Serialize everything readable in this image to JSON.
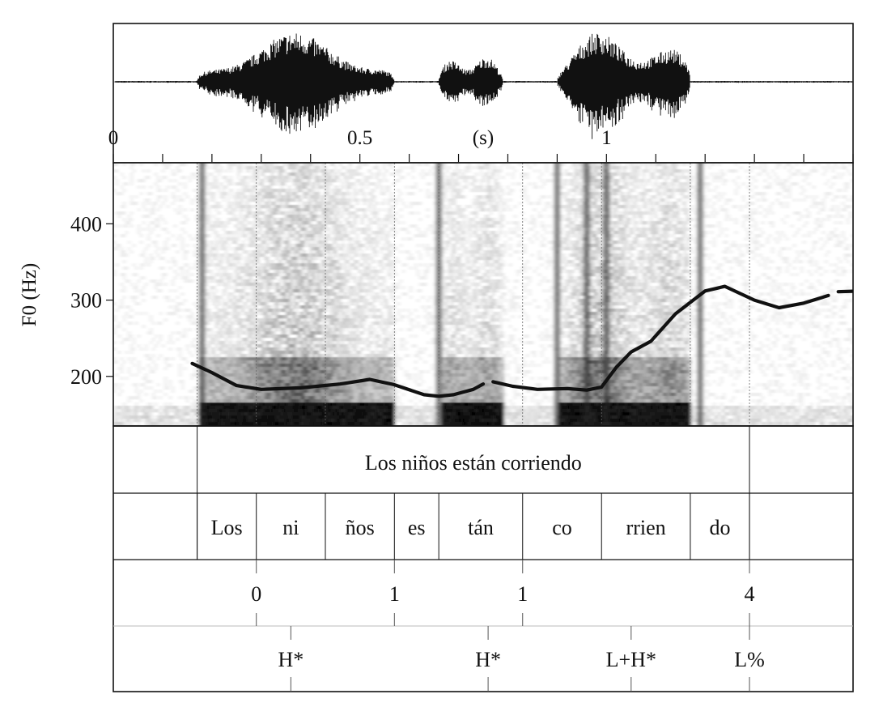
{
  "waveform": {
    "time_axis": {
      "unit_label": "(s)",
      "tick_labels": [
        {
          "text": "0",
          "time": 0
        },
        {
          "text": "0.5",
          "time": 0.5
        },
        {
          "text": "1",
          "time": 1.0
        }
      ],
      "xlim": [
        0,
        1.5
      ]
    },
    "bursts": [
      {
        "start": 0.17,
        "end": 0.57,
        "amp": 0.9
      },
      {
        "start": 0.66,
        "end": 0.79,
        "amp": 0.55
      },
      {
        "start": 0.9,
        "end": 1.17,
        "amp": 1.0
      }
    ]
  },
  "spectrogram": {
    "ylabel": "F0 (Hz)",
    "ylim": [
      135,
      480
    ],
    "yticks": [
      {
        "text": "200",
        "value": 200
      },
      {
        "text": "300",
        "value": 300
      },
      {
        "text": "400",
        "value": 400
      }
    ]
  },
  "chart_data": {
    "type": "line",
    "title": "",
    "xlabel": "(s)",
    "ylabel": "F0 (Hz)",
    "xlim": [
      0,
      1.5
    ],
    "ylim": [
      135,
      480
    ],
    "series": [
      {
        "segments": [
          [
            [
              0.16,
              217
            ],
            [
              0.2,
              205
            ],
            [
              0.25,
              188
            ],
            [
              0.3,
              183
            ],
            [
              0.38,
              185
            ],
            [
              0.46,
              190
            ],
            [
              0.52,
              196
            ],
            [
              0.57,
              189
            ],
            [
              0.63,
              176
            ],
            [
              0.66,
              174
            ],
            [
              0.69,
              176
            ],
            [
              0.73,
              183
            ],
            [
              0.75,
              190
            ]
          ],
          [
            [
              0.77,
              193
            ],
            [
              0.81,
              187
            ],
            [
              0.86,
              183
            ],
            [
              0.92,
              184
            ],
            [
              0.96,
              182
            ],
            [
              0.99,
              186
            ],
            [
              1.02,
              212
            ],
            [
              1.05,
              232
            ],
            [
              1.09,
              246
            ],
            [
              1.14,
              282
            ],
            [
              1.2,
              312
            ],
            [
              1.24,
              318
            ],
            [
              1.3,
              300
            ],
            [
              1.35,
              290
            ],
            [
              1.4,
              296
            ],
            [
              1.45,
              306
            ]
          ],
          [
            [
              1.47,
              311
            ],
            [
              1.52,
              312
            ]
          ]
        ]
      }
    ]
  },
  "tiers": {
    "utterance": {
      "text": "Los niños están corriendo"
    },
    "syllables": [
      {
        "text": "Los",
        "start": 0.17,
        "end": 0.29
      },
      {
        "text": "ni",
        "start": 0.29,
        "end": 0.43
      },
      {
        "text": "ños",
        "start": 0.43,
        "end": 0.57
      },
      {
        "text": "es",
        "start": 0.57,
        "end": 0.66
      },
      {
        "text": "tán",
        "start": 0.66,
        "end": 0.83
      },
      {
        "text": "co",
        "start": 0.83,
        "end": 0.99
      },
      {
        "text": "rrien",
        "start": 0.99,
        "end": 1.17
      },
      {
        "text": "do",
        "start": 1.17,
        "end": 1.29
      }
    ],
    "utterance_span": {
      "start": 0.17,
      "end": 1.29
    },
    "break_indices": [
      {
        "text": "0",
        "time": 0.29
      },
      {
        "text": "1",
        "time": 0.57
      },
      {
        "text": "1",
        "time": 0.83
      },
      {
        "text": "4",
        "time": 1.29
      }
    ],
    "tones": [
      {
        "text": "H*",
        "time": 0.36
      },
      {
        "text": "H*",
        "time": 0.76
      },
      {
        "text": "L+H*",
        "time": 1.05
      },
      {
        "text": "L%",
        "time": 1.29
      }
    ]
  }
}
